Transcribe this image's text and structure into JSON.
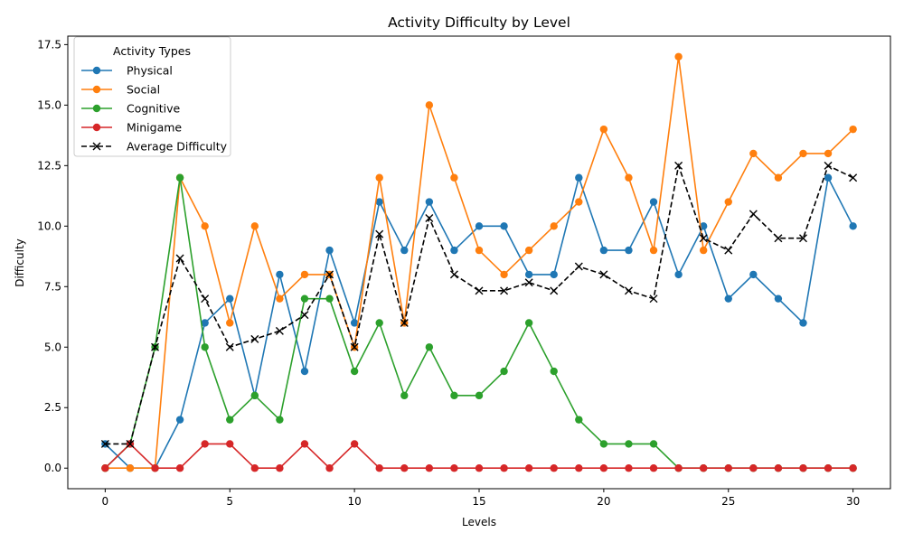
{
  "chart_data": {
    "type": "line",
    "title": "Activity Difficulty by Level",
    "xlabel": "Levels",
    "ylabel": "Difficulty",
    "xlim": [
      -1.5,
      31.5
    ],
    "ylim": [
      -0.85,
      17.85
    ],
    "xticks": [
      0,
      5,
      10,
      15,
      20,
      25,
      30
    ],
    "yticks": [
      0.0,
      2.5,
      5.0,
      7.5,
      10.0,
      12.5,
      15.0,
      17.5
    ],
    "ytick_labels": [
      "0.0",
      "2.5",
      "5.0",
      "7.5",
      "10.0",
      "12.5",
      "15.0",
      "17.5"
    ],
    "legend": {
      "title": "Activity Types",
      "placement": "top-left"
    },
    "x": [
      0,
      1,
      2,
      3,
      4,
      5,
      6,
      7,
      8,
      9,
      10,
      11,
      12,
      13,
      14,
      15,
      16,
      17,
      18,
      19,
      20,
      21,
      22,
      23,
      24,
      25,
      26,
      27,
      28,
      29,
      30
    ],
    "series": [
      {
        "name": "Physical",
        "color": "#1f77b4",
        "marker": "circle",
        "style": "solid",
        "values": [
          1,
          0,
          0,
          2,
          6,
          7,
          3,
          8,
          4,
          9,
          6,
          11,
          9,
          11,
          9,
          10,
          10,
          8,
          8,
          12,
          9,
          9,
          11,
          8,
          10,
          7,
          8,
          7,
          6,
          12,
          10
        ]
      },
      {
        "name": "Social",
        "color": "#ff7f0e",
        "marker": "circle",
        "style": "solid",
        "values": [
          0,
          0,
          0,
          12,
          10,
          6,
          10,
          7,
          8,
          8,
          5,
          12,
          6,
          15,
          12,
          9,
          8,
          9,
          10,
          11,
          14,
          12,
          9,
          17,
          9,
          11,
          13,
          12,
          13,
          13,
          14
        ]
      },
      {
        "name": "Cognitive",
        "color": "#2ca02c",
        "marker": "circle",
        "style": "solid",
        "values": [
          0,
          1,
          5,
          12,
          5,
          2,
          3,
          2,
          7,
          7,
          4,
          6,
          3,
          5,
          3,
          3,
          4,
          6,
          4,
          2,
          1,
          1,
          1,
          0,
          0,
          0,
          0,
          0,
          0,
          0,
          0
        ]
      },
      {
        "name": "Minigame",
        "color": "#d62728",
        "marker": "circle",
        "style": "solid",
        "values": [
          0,
          1,
          0,
          0,
          1,
          1,
          0,
          0,
          1,
          0,
          1,
          0,
          0,
          0,
          0,
          0,
          0,
          0,
          0,
          0,
          0,
          0,
          0,
          0,
          0,
          0,
          0,
          0,
          0,
          0,
          0
        ]
      },
      {
        "name": "Average Difficulty",
        "color": "#000000",
        "marker": "x",
        "style": "dashed",
        "values": [
          1,
          1,
          5,
          8.67,
          7,
          5,
          5.33,
          5.67,
          6.33,
          8,
          5,
          9.67,
          6,
          10.33,
          8,
          7.33,
          7.33,
          7.67,
          7.33,
          8.33,
          8,
          7.33,
          7,
          12.5,
          9.5,
          9,
          10.5,
          9.5,
          9.5,
          12.5,
          12
        ]
      }
    ]
  }
}
